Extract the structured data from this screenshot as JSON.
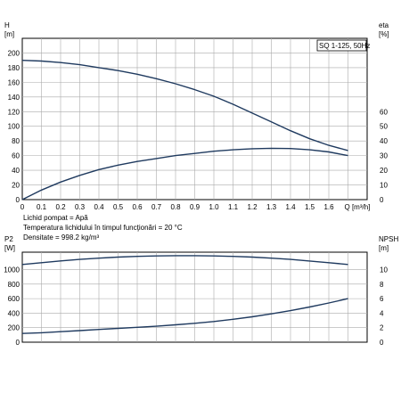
{
  "colors": {
    "grid": "#aaaaaa",
    "frame": "#000000",
    "curve_top": "#1f3a5f",
    "curve_bottom": "#1f3a5f",
    "background": "#ffffff"
  },
  "info": {
    "lines": [
      "Lichid pompat = Apă",
      "Temperatura lichidului în timpul funcţionări = 20 °C",
      "Densitate = 998.2 kg/m³"
    ]
  },
  "chart_data": [
    {
      "type": "line",
      "title": "SQ 1-125, 50Hz",
      "xlabel": "Q [m³/h]",
      "xlim": [
        0,
        1.8
      ],
      "x_ticks": [
        "0",
        "0.1",
        "0.2",
        "0.3",
        "0.4",
        "0.5",
        "0.6",
        "0.7",
        "0.8",
        "0.9",
        "1.0",
        "1.1",
        "1.2",
        "1.3",
        "1.4",
        "1.5",
        "1.6"
      ],
      "left_axis": {
        "label_top": "H",
        "label_unit": "[m]",
        "lim": [
          0,
          220
        ],
        "ticks": [
          "0",
          "20",
          "40",
          "60",
          "80",
          "100",
          "120",
          "140",
          "160",
          "180",
          "200"
        ]
      },
      "right_axis": {
        "label_top": "eta",
        "label_unit": "[%]",
        "lim": [
          0,
          110
        ],
        "ticks": [
          "0",
          "10",
          "20",
          "30",
          "40",
          "50",
          "60"
        ]
      },
      "grid": true,
      "series": [
        {
          "axis": "left",
          "x": [
            0,
            0.1,
            0.2,
            0.3,
            0.4,
            0.5,
            0.6,
            0.7,
            0.8,
            0.9,
            1.0,
            1.1,
            1.2,
            1.3,
            1.4,
            1.5,
            1.6,
            1.7
          ],
          "values": [
            190,
            189,
            187,
            184,
            180,
            176,
            171,
            165,
            158,
            150,
            141,
            130,
            118,
            106,
            94,
            83,
            74,
            67
          ]
        },
        {
          "axis": "right",
          "x": [
            0,
            0.1,
            0.2,
            0.3,
            0.4,
            0.5,
            0.6,
            0.7,
            0.8,
            0.9,
            1.0,
            1.1,
            1.2,
            1.3,
            1.4,
            1.5,
            1.6,
            1.7
          ],
          "values": [
            0,
            6.5,
            12,
            16.5,
            20.5,
            23.5,
            26,
            28,
            30,
            31.5,
            33,
            34,
            34.7,
            35,
            34.8,
            34,
            32.5,
            30
          ]
        }
      ]
    },
    {
      "type": "line",
      "xlim": [
        0,
        1.8
      ],
      "left_axis": {
        "label_top": "P2",
        "label_unit": "[W]",
        "lim": [
          0,
          1240
        ],
        "ticks": [
          "0",
          "200",
          "400",
          "600",
          "800",
          "1000"
        ]
      },
      "right_axis": {
        "label_top": "NPSH",
        "label_unit": "[m]",
        "lim": [
          0,
          12.4
        ],
        "ticks": [
          "0",
          "2",
          "4",
          "6",
          "8",
          "10"
        ]
      },
      "grid": true,
      "series": [
        {
          "axis": "left",
          "x": [
            0,
            0.1,
            0.2,
            0.3,
            0.4,
            0.5,
            0.6,
            0.7,
            0.8,
            0.9,
            1.0,
            1.1,
            1.2,
            1.3,
            1.4,
            1.5,
            1.6,
            1.7
          ],
          "values": [
            1070,
            1095,
            1120,
            1140,
            1158,
            1172,
            1182,
            1188,
            1192,
            1192,
            1189,
            1182,
            1172,
            1158,
            1140,
            1118,
            1095,
            1070
          ]
        },
        {
          "axis": "right",
          "x": [
            0,
            0.1,
            0.2,
            0.3,
            0.4,
            0.5,
            0.6,
            0.7,
            0.8,
            0.9,
            1.0,
            1.1,
            1.2,
            1.3,
            1.4,
            1.5,
            1.6,
            1.7
          ],
          "values": [
            1.2,
            1.3,
            1.45,
            1.6,
            1.75,
            1.9,
            2.05,
            2.2,
            2.4,
            2.6,
            2.85,
            3.15,
            3.5,
            3.9,
            4.35,
            4.85,
            5.4,
            6.0
          ]
        }
      ]
    }
  ]
}
